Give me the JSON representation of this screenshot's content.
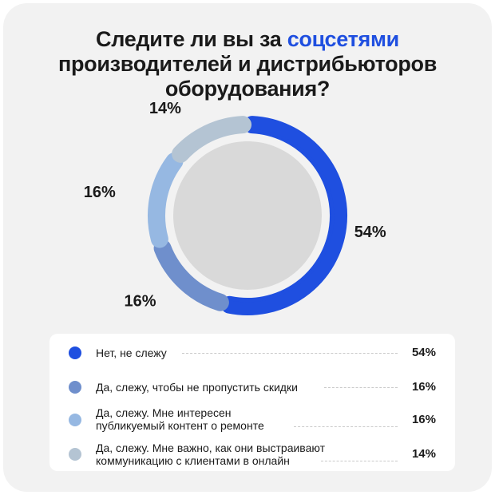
{
  "title": {
    "line1_prefix": "Следите ли вы за ",
    "line1_highlight": "соцсетями",
    "line2": "производителей и дистрибьюторов",
    "line3": "оборудования?"
  },
  "colors": {
    "accent": "#1f4fe0",
    "series": [
      "#1f4fe0",
      "#6f8fcc",
      "#96b8e2",
      "#b4c4d3"
    ]
  },
  "chart_data": {
    "type": "pie",
    "style": "donut",
    "categories": [
      "Нет, не слежу",
      "Да, слежу, чтобы не пропустить скидки",
      "Да, слежу. Мне интересен публикуемый контент о ремонте",
      "Да, слежу. Мне важно, как они выстраивают коммуникацию с клиентами в онлайн"
    ],
    "values": [
      54,
      16,
      16,
      14
    ],
    "value_labels": [
      "54%",
      "16%",
      "16%",
      "14%"
    ],
    "legend_position": "bottom"
  },
  "legend": [
    {
      "line1": "Нет, не слежу",
      "line2": "",
      "value": "54%"
    },
    {
      "line1": "Да, слежу, чтобы не пропустить скидки",
      "line2": "",
      "value": "16%"
    },
    {
      "line1": "Да, слежу. Мне интересен",
      "line2": "публикуемый контент о ремонте",
      "value": "16%"
    },
    {
      "line1": "Да, слежу. Мне важно, как они выстраивают",
      "line2": "коммуникацию с клиентами в онлайн",
      "value": "14%"
    }
  ]
}
